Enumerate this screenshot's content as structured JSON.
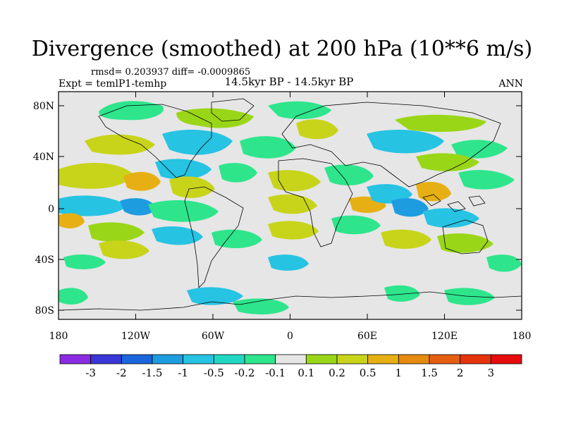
{
  "title": "Divergence (smoothed) at 200 hPa (10**6 m/s)",
  "stats": "rmsd= 0.203937 diff= -0.0009865",
  "experiment": "Expt = temlP1-temhp",
  "period": "14.5kyr BP - 14.5kyr BP",
  "season": "ANN",
  "lat_ticks": [
    "80N",
    "40N",
    "0",
    "40S",
    "80S"
  ],
  "lon_ticks": [
    "180",
    "120W",
    "60W",
    "0",
    "60E",
    "120E",
    "180"
  ],
  "colorbar": {
    "colors": [
      "#8a2be2",
      "#3a37d8",
      "#1a66dc",
      "#1e9ce0",
      "#26c3e3",
      "#20d9c4",
      "#2ee58c",
      "#e6e6e6",
      "#9ad618",
      "#c8d41a",
      "#e6b014",
      "#e68a10",
      "#e65f10",
      "#e6340c",
      "#e60c0c"
    ],
    "labels": [
      "-3",
      "-2",
      "-1.5",
      "-1",
      "-0.5",
      "-0.2",
      "-0.1",
      "0.1",
      "0.2",
      "0.5",
      "1",
      "1.5",
      "2",
      "3"
    ]
  },
  "field_colors": {
    "ocean_bg": "#e6e6e6",
    "green": "#2ee58c",
    "teal": "#20d9c4",
    "cyan": "#26c3e3",
    "blue": "#1e9ce0",
    "lime": "#9ad618",
    "yellowgreen": "#c8d41a",
    "orange": "#e6b014"
  }
}
